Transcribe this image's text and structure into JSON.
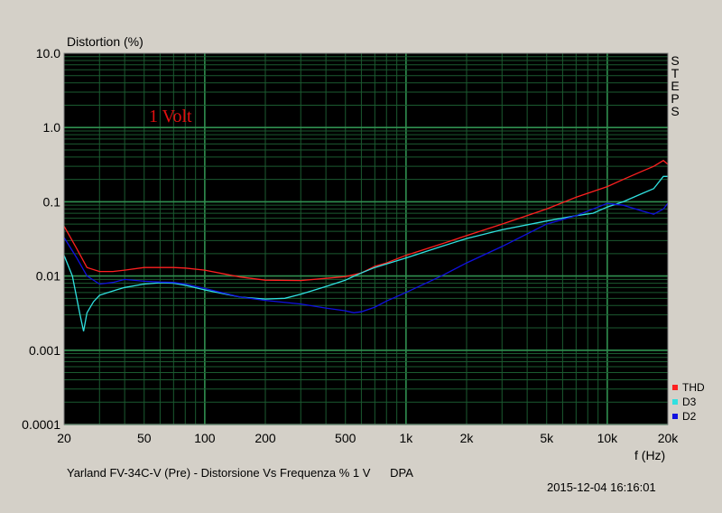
{
  "chart_data": {
    "type": "line",
    "title": "",
    "xlabel": "f (Hz)",
    "ylabel": "Distortion (%)",
    "xscale": "log",
    "yscale": "log",
    "xlim": [
      20,
      20000
    ],
    "ylim": [
      0.0001,
      10
    ],
    "x_ticks": [
      {
        "v": 20,
        "label": "20"
      },
      {
        "v": 50,
        "label": "50"
      },
      {
        "v": 100,
        "label": "100"
      },
      {
        "v": 200,
        "label": "200"
      },
      {
        "v": 500,
        "label": "500"
      },
      {
        "v": 1000,
        "label": "1k"
      },
      {
        "v": 2000,
        "label": "2k"
      },
      {
        "v": 5000,
        "label": "5k"
      },
      {
        "v": 10000,
        "label": "10k"
      },
      {
        "v": 20000,
        "label": "20k"
      }
    ],
    "y_ticks": [
      {
        "v": 10,
        "label": "10.0"
      },
      {
        "v": 1,
        "label": "1.0"
      },
      {
        "v": 0.1,
        "label": "0.1"
      },
      {
        "v": 0.01,
        "label": "0.01"
      },
      {
        "v": 0.001,
        "label": "0.001"
      },
      {
        "v": 0.0001,
        "label": "0.0001"
      }
    ],
    "grid": true,
    "legend_position": "bottom-right",
    "annotation": "1 Volt",
    "side_label": "STEPS",
    "series": [
      {
        "name": "THD",
        "color": "#ff2020",
        "x": [
          20,
          23,
          26,
          30,
          35,
          40,
          50,
          60,
          70,
          80,
          100,
          150,
          200,
          300,
          400,
          500,
          600,
          700,
          800,
          1000,
          1500,
          2000,
          3000,
          5000,
          7000,
          10000,
          12000,
          15000,
          17000,
          19000,
          20000
        ],
        "y": [
          0.047,
          0.024,
          0.013,
          0.0115,
          0.0115,
          0.012,
          0.013,
          0.013,
          0.013,
          0.0128,
          0.012,
          0.0097,
          0.0088,
          0.0087,
          0.0093,
          0.0098,
          0.011,
          0.0135,
          0.015,
          0.019,
          0.027,
          0.035,
          0.05,
          0.08,
          0.115,
          0.16,
          0.2,
          0.26,
          0.3,
          0.36,
          0.32
        ]
      },
      {
        "name": "D3",
        "color": "#30e0e0",
        "x": [
          20,
          22,
          24,
          25,
          26,
          28,
          30,
          35,
          40,
          50,
          60,
          70,
          80,
          100,
          150,
          200,
          250,
          300,
          400,
          500,
          600,
          700,
          800,
          1000,
          1500,
          2000,
          3000,
          5000,
          7000,
          8500,
          10000,
          12000,
          15000,
          17000,
          19000,
          20000
        ],
        "y": [
          0.019,
          0.01,
          0.003,
          0.0018,
          0.0032,
          0.0045,
          0.0055,
          0.0063,
          0.007,
          0.0078,
          0.0081,
          0.008,
          0.0075,
          0.0065,
          0.0052,
          0.0049,
          0.005,
          0.0057,
          0.0072,
          0.0088,
          0.011,
          0.013,
          0.0145,
          0.0175,
          0.025,
          0.032,
          0.042,
          0.055,
          0.065,
          0.07,
          0.085,
          0.1,
          0.13,
          0.15,
          0.22,
          0.22
        ]
      },
      {
        "name": "D2",
        "color": "#1010e0",
        "x": [
          20,
          23,
          26,
          30,
          35,
          40,
          50,
          60,
          70,
          80,
          100,
          150,
          200,
          300,
          400,
          500,
          550,
          600,
          700,
          800,
          1000,
          1500,
          2000,
          3000,
          5000,
          7000,
          10000,
          12000,
          15000,
          17000,
          19000,
          20000
        ],
        "y": [
          0.033,
          0.018,
          0.01,
          0.0078,
          0.0082,
          0.009,
          0.0085,
          0.0083,
          0.0082,
          0.0078,
          0.0068,
          0.0052,
          0.0047,
          0.0042,
          0.0037,
          0.0034,
          0.0032,
          0.0033,
          0.0038,
          0.0046,
          0.006,
          0.01,
          0.015,
          0.025,
          0.05,
          0.065,
          0.095,
          0.09,
          0.075,
          0.068,
          0.08,
          0.095
        ]
      }
    ]
  },
  "footer": {
    "title": "Yarland FV-34C-V (Pre) - Distorsione Vs Frequenza % 1 V      DPA",
    "timestamp": "2015-12-04 16:16:01"
  }
}
